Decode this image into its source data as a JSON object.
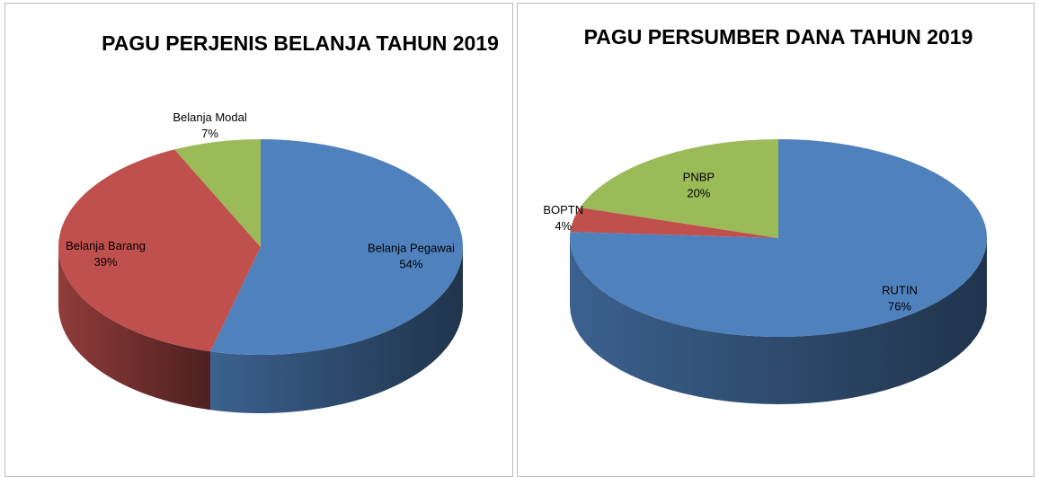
{
  "chart_data": [
    {
      "type": "pie3d",
      "title": "PAGU PERJENIS BELANJA TAHUN 2019",
      "categories": [
        "Belanja Pegawai",
        "Belanja Barang",
        "Belanja Modal"
      ],
      "values": [
        54,
        39,
        7
      ],
      "value_labels": [
        "54%",
        "39%",
        "7%"
      ],
      "colors": [
        "#4f81bd",
        "#c0504d",
        "#9bbb59"
      ]
    },
    {
      "type": "pie3d",
      "title": "PAGU PERSUMBER DANA TAHUN 2019",
      "categories": [
        "RUTIN",
        "BOPTN",
        "PNBP"
      ],
      "values": [
        76,
        4,
        20
      ],
      "value_labels": [
        "76%",
        "4%",
        "20%"
      ],
      "colors": [
        "#4f81bd",
        "#c0504d",
        "#9bbb59"
      ]
    }
  ]
}
